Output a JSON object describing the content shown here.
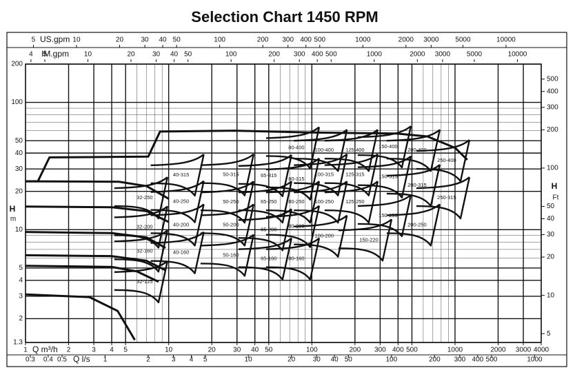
{
  "chart_data": {
    "type": "pump-selection",
    "title": "Selection Chart 1450 RPM",
    "ylabel": "H",
    "yunit": "m",
    "y2label": "H",
    "y2unit": "Ft",
    "xlabel": "Q m³/h",
    "log_scale": true,
    "grid": true,
    "color": "#111111",
    "xlim": [
      1,
      4000
    ],
    "xticks": [
      1,
      2,
      3,
      4,
      5,
      10,
      20,
      30,
      40,
      50,
      100,
      200,
      300,
      400,
      500,
      1000,
      2000,
      3000,
      4000
    ],
    "ylim": [
      1.3,
      200
    ],
    "yticks": [
      1.3,
      2,
      3,
      4,
      5,
      10,
      20,
      30,
      40,
      50,
      100,
      200
    ],
    "y2lim": [
      4.265,
      656.2
    ],
    "y2ticks": [
      5,
      10,
      20,
      30,
      40,
      50,
      100,
      200,
      300,
      400,
      500
    ],
    "secondary_x_axes": [
      {
        "label": "US.gpm",
        "position": "top",
        "lim": [
          4.403,
          17612
        ],
        "ticks": [
          5,
          10,
          20,
          30,
          40,
          50,
          100,
          200,
          300,
          400,
          500,
          1000,
          2000,
          3000,
          5000,
          10000
        ]
      },
      {
        "label": "IM.gpm",
        "position": "top",
        "lim": [
          3.666,
          14664
        ],
        "ticks": [
          4,
          5,
          10,
          20,
          30,
          40,
          50,
          100,
          200,
          300,
          400,
          500,
          1000,
          2000,
          3000,
          5000,
          10000
        ]
      },
      {
        "label": "Q l/s",
        "position": "bottom",
        "lim": [
          0.2778,
          1111.1
        ],
        "ticks": [
          0.3,
          0.4,
          0.5,
          1,
          2,
          3,
          4,
          5,
          10,
          20,
          30,
          40,
          50,
          100,
          200,
          300,
          400,
          500,
          1000
        ]
      }
    ],
    "curves": [
      {
        "x": [
          1,
          2.8,
          4.4,
          5.8
        ],
        "y": [
          3.1,
          2.95,
          2.3,
          1.36
        ]
      },
      {
        "x": [
          1,
          4,
          6,
          8.5
        ],
        "y": [
          5.2,
          5.1,
          4.7,
          3.9
        ]
      },
      {
        "x": [
          1,
          4,
          7,
          9.5
        ],
        "y": [
          6.3,
          6.2,
          5.7,
          4.8
        ]
      },
      {
        "x": [
          1,
          4,
          7,
          9.5
        ],
        "y": [
          9.6,
          9.4,
          8.7,
          7.2
        ]
      },
      {
        "x": [
          1,
          4,
          7,
          10
        ],
        "y": [
          15.2,
          15,
          14,
          11.5
        ]
      },
      {
        "x": [
          1,
          4.5,
          7,
          10
        ],
        "y": [
          24,
          23.8,
          22,
          17.5
        ]
      },
      {
        "x": [
          1,
          1.22,
          1.47,
          7.2,
          8.7,
          28.8,
          97,
          389,
          641,
          1000,
          1219
        ],
        "y": [
          24,
          24,
          37,
          37.5,
          59,
          60,
          58,
          57,
          54,
          44,
          35.4
        ]
      }
    ],
    "models": [
      {
        "label": "32-125",
        "q": 6.8,
        "h": 3.9
      },
      {
        "label": "32-160",
        "q": 6.8,
        "h": 6.8
      },
      {
        "label": "32-200",
        "q": 6.8,
        "h": 10.5
      },
      {
        "label": "32-250",
        "q": 6.8,
        "h": 17.8
      },
      {
        "label": "40-160",
        "q": 12.2,
        "h": 6.6
      },
      {
        "label": "40-200",
        "q": 12.2,
        "h": 10.9
      },
      {
        "label": "40-250",
        "q": 12.2,
        "h": 16.6
      },
      {
        "label": "40-315",
        "q": 12.2,
        "h": 26.9
      },
      {
        "label": "50-160",
        "q": 27.2,
        "h": 6.3
      },
      {
        "label": "50-200",
        "q": 27.2,
        "h": 10.9
      },
      {
        "label": "50-250",
        "q": 27.2,
        "h": 16.5
      },
      {
        "label": "50-315",
        "q": 27.2,
        "h": 27
      },
      {
        "label": "65-160",
        "q": 50,
        "h": 5.9
      },
      {
        "label": "65-200",
        "q": 50,
        "h": 10
      },
      {
        "label": "65-250",
        "q": 50,
        "h": 16.5
      },
      {
        "label": "65-315",
        "q": 50,
        "h": 26.6
      },
      {
        "label": "80-160",
        "q": 78,
        "h": 5.9
      },
      {
        "label": "80-200",
        "q": 78,
        "h": 10.6
      },
      {
        "label": "80-250",
        "q": 78,
        "h": 16.5
      },
      {
        "label": "80-315",
        "q": 78,
        "h": 25
      },
      {
        "label": "80-400",
        "q": 78,
        "h": 44
      },
      {
        "label": "100-200",
        "q": 122,
        "h": 8.9
      },
      {
        "label": "100-250",
        "q": 122,
        "h": 16.5
      },
      {
        "label": "100-315",
        "q": 122,
        "h": 27
      },
      {
        "label": "100-400",
        "q": 122,
        "h": 42
      },
      {
        "label": "125-250",
        "q": 200,
        "h": 16.5
      },
      {
        "label": "125-315",
        "q": 200,
        "h": 27
      },
      {
        "label": "125-400",
        "q": 200,
        "h": 42
      },
      {
        "label": "150-220",
        "q": 250,
        "h": 8.3
      },
      {
        "label": "150-250",
        "q": 341,
        "h": 12.9
      },
      {
        "label": "150-315",
        "q": 341,
        "h": 26
      },
      {
        "label": "150-400",
        "q": 341,
        "h": 44.8
      },
      {
        "label": "200-250",
        "q": 543,
        "h": 10.9
      },
      {
        "label": "200-315",
        "q": 543,
        "h": 22.3
      },
      {
        "label": "200-400",
        "q": 543,
        "h": 42
      },
      {
        "label": "250-315",
        "q": 875,
        "h": 17.8
      },
      {
        "label": "250-400",
        "q": 875,
        "h": 34.9
      }
    ]
  }
}
